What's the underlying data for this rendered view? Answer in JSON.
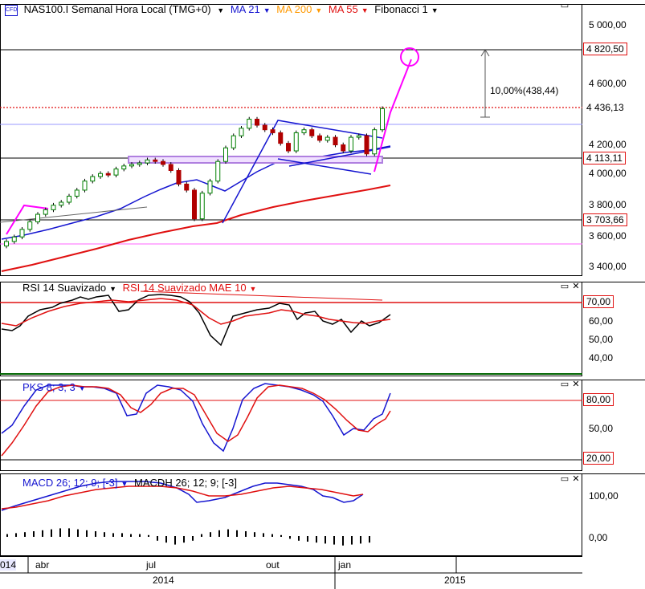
{
  "main": {
    "logo_text": "CFD",
    "title": "NAS100.I Semanal Hora Local (TMG+0)",
    "indicators": [
      {
        "label": "MA 21",
        "color": "#1515d0"
      },
      {
        "label": "MA 200",
        "color": "#ff9900"
      },
      {
        "label": "MA 55",
        "color": "#e01010"
      },
      {
        "label": "Fibonacci 1",
        "color": "#000000"
      }
    ],
    "price_axis": [
      "5 000,00",
      "4 600,00",
      "4 200,00",
      "4 000,00",
      "3 800,00",
      "3 600,00",
      "3 400,00"
    ],
    "price_tags": {
      "target": "4 820,50",
      "current": "4 436,13",
      "support": "4 113,11",
      "low": "3 703,66"
    },
    "measure_label": "10,00%(438,44)"
  },
  "rsi": {
    "label1": "RSI 14 Suavizado",
    "label2": "RSI 14 Suavizado MAE 10",
    "axis": [
      "60,00",
      "50,00",
      "40,00"
    ],
    "tag": "70,00"
  },
  "pks": {
    "label": "PKS 8; 3; 3",
    "axis": [
      "50,00"
    ],
    "tag_high": "80,00",
    "tag_low": "20,00"
  },
  "macd": {
    "label1": "MACD 26; 12; 9; [-3]",
    "label2": "MACDH 26; 12; 9; [-3]",
    "axis": [
      "100,00",
      "0,00"
    ]
  },
  "time_axis": {
    "months": [
      "014",
      "abr",
      "jul",
      "out",
      "jan"
    ],
    "years": [
      "2014",
      "2015"
    ]
  },
  "colors": {
    "blue": "#1515d0",
    "red": "#e01010",
    "green": "#006400",
    "magenta": "#ff00ff",
    "purple": "#9966cc"
  },
  "chart_data": {
    "type": "candlestick",
    "ylim": [
      3300,
      5100
    ],
    "closes": [
      3560,
      3590,
      3640,
      3690,
      3740,
      3770,
      3800,
      3820,
      3860,
      3900,
      3960,
      3990,
      4010,
      4000,
      4040,
      4060,
      4070,
      4080,
      4100,
      4090,
      4070,
      4030,
      3940,
      3900,
      3710,
      3880,
      3960,
      4090,
      4180,
      4260,
      4310,
      4370,
      4330,
      4300,
      4280,
      4210,
      4160,
      4280,
      4300,
      4260,
      4230,
      4250,
      4200,
      4160,
      4250,
      4260,
      4140,
      4300,
      4440
    ],
    "annotations": {
      "target": 4820.5,
      "current": 4436.13,
      "support": 4113.11,
      "low": 3703.66,
      "measure_pct": 10.0,
      "measure_pts": 438.44
    }
  }
}
